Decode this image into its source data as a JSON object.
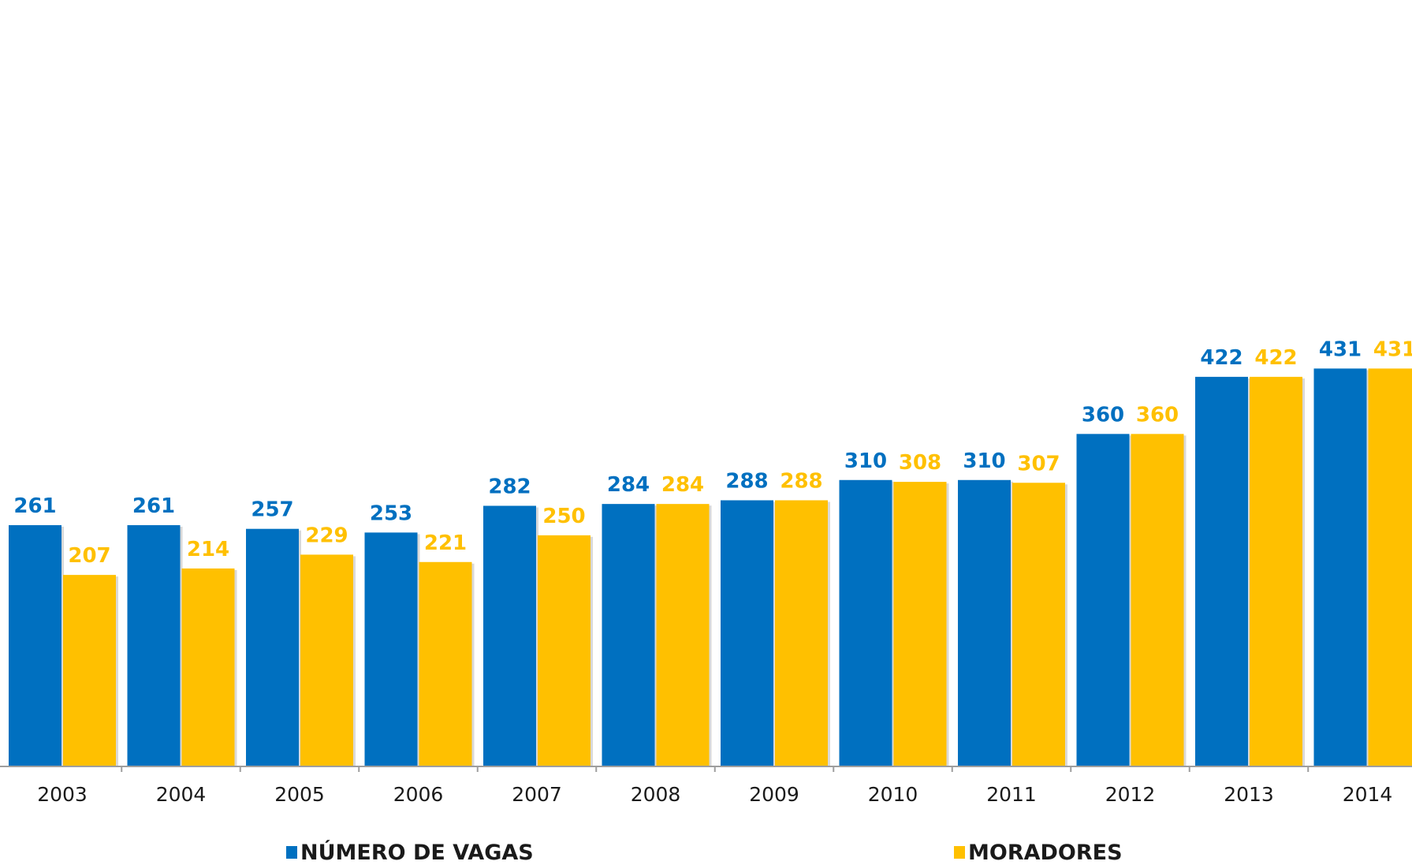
{
  "chart_data": {
    "type": "bar",
    "categories": [
      "2003",
      "2004",
      "2005",
      "2006",
      "2007",
      "2008",
      "2009",
      "2010",
      "2011",
      "2012",
      "2013",
      "2014"
    ],
    "series": [
      {
        "name": "NÚMERO DE VAGAS",
        "color": "#0070C0",
        "values": [
          261,
          261,
          257,
          253,
          282,
          284,
          288,
          310,
          310,
          360,
          422,
          431
        ]
      },
      {
        "name": "MORADORES",
        "color": "#FFC000",
        "values": [
          207,
          214,
          229,
          221,
          250,
          284,
          288,
          308,
          307,
          360,
          422,
          431
        ]
      }
    ],
    "title": "",
    "xlabel": "",
    "ylabel": "",
    "ylim": [
      0,
      500
    ],
    "grid": false,
    "legend": "bottom",
    "data_labels": true
  }
}
